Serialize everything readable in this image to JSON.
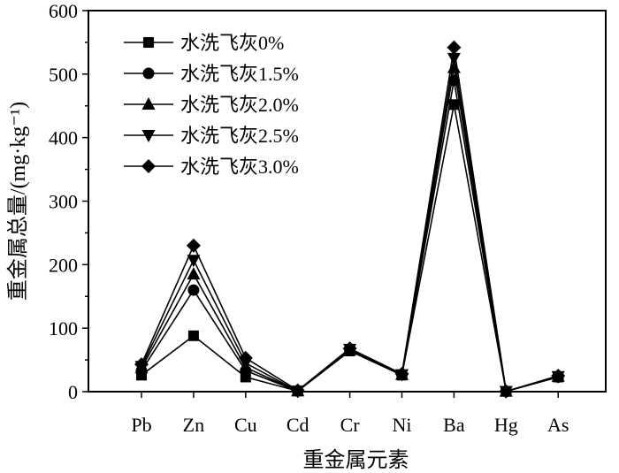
{
  "chart_data": {
    "type": "line",
    "title": "",
    "xlabel": "重金属元素",
    "ylabel": "重金属总量/(mg·kg⁻¹)",
    "ylim": [
      0,
      600
    ],
    "yticks": [
      0,
      100,
      200,
      300,
      400,
      500,
      600
    ],
    "categories": [
      "Pb",
      "Zn",
      "Cu",
      "Cd",
      "Cr",
      "Ni",
      "Ba",
      "Hg",
      "As"
    ],
    "legend_position": "top-left",
    "series": [
      {
        "name": "水洗飞灰0%",
        "marker": "square",
        "values": [
          26,
          88,
          23,
          1,
          64,
          26,
          452,
          0.5,
          23
        ]
      },
      {
        "name": "水洗飞灰1.5%",
        "marker": "circle",
        "values": [
          33,
          160,
          33,
          1,
          65,
          27,
          490,
          0.5,
          23
        ]
      },
      {
        "name": "水洗飞灰2.0%",
        "marker": "triangle-up",
        "values": [
          37,
          185,
          38,
          1,
          66,
          27,
          510,
          0.5,
          24
        ]
      },
      {
        "name": "水洗飞灰2.5%",
        "marker": "triangle-down",
        "values": [
          40,
          207,
          45,
          1,
          67,
          27,
          525,
          0.5,
          24
        ]
      },
      {
        "name": "水洗飞灰3.0%",
        "marker": "diamond",
        "values": [
          43,
          230,
          53,
          2,
          68,
          28,
          542,
          0.5,
          25
        ]
      }
    ]
  }
}
